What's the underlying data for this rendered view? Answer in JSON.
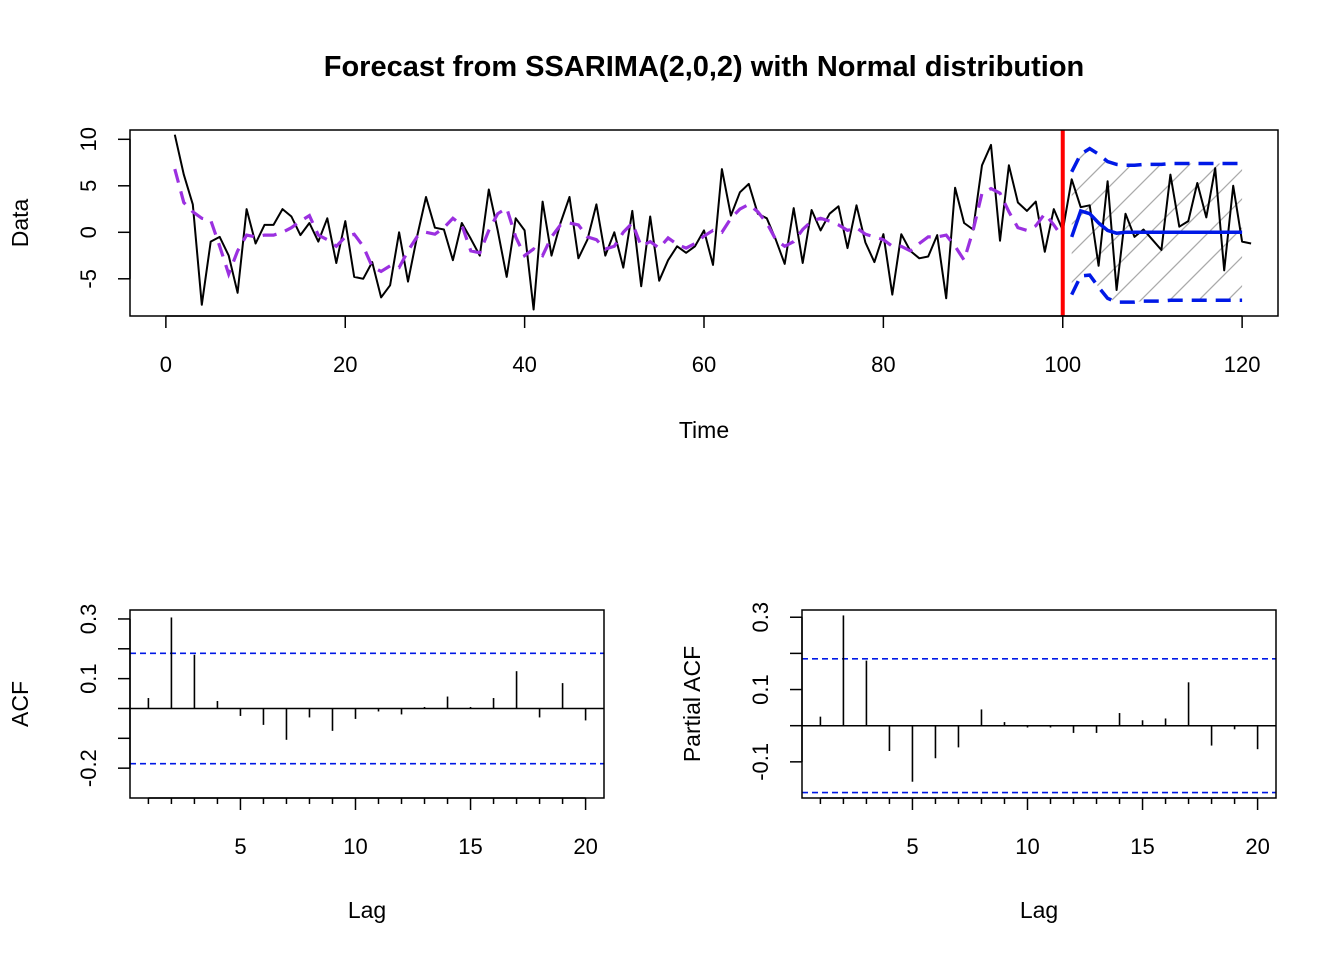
{
  "chart_data": [
    {
      "type": "line",
      "title": "Forecast from SSARIMA(2,0,2) with Normal distribution",
      "xlabel": "Time",
      "ylabel": "Data",
      "xlim": [
        -4,
        124
      ],
      "ylim": [
        -9,
        11
      ],
      "xticks": [
        0,
        20,
        40,
        60,
        80,
        100,
        120
      ],
      "yticks": [
        -5,
        0,
        5,
        10
      ],
      "grid": false,
      "forecast_origin": 100,
      "colors": {
        "actual": "#000000",
        "fitted": "#9b30e0",
        "forecast": "#0019e6",
        "origin": "#ff0000",
        "band_hatch": "#aaaaaa"
      },
      "series": [
        {
          "role": "actual",
          "x_start": 1,
          "values": [
            10.5,
            6.2,
            3.0,
            -7.8,
            -1.0,
            -0.5,
            -2.5,
            -6.5,
            2.5,
            -1.2,
            0.8,
            0.8,
            2.5,
            1.7,
            -0.3,
            1.0,
            -1.0,
            1.5,
            -3.3,
            1.2,
            -4.8,
            -5.0,
            -3.2,
            -7.0,
            -5.7,
            0.0,
            -5.3,
            -0.5,
            3.8,
            0.5,
            0.3,
            -3.0,
            1.0,
            -0.7,
            -2.5,
            4.6,
            0.2,
            -4.8,
            1.5,
            0.2,
            -8.3,
            3.3,
            -2.5,
            1.0,
            3.8,
            -2.8,
            -0.8,
            3.0,
            -2.5,
            0.0,
            -3.8,
            2.3,
            -5.8,
            1.7,
            -5.2,
            -3.0,
            -1.5,
            -2.2,
            -1.5,
            0.2,
            -3.5,
            6.8,
            1.8,
            4.3,
            5.2,
            2.0,
            1.5,
            -0.8,
            -3.4,
            2.6,
            -3.3,
            2.4,
            0.2,
            2.0,
            2.8,
            -1.7,
            2.9,
            -1.1,
            -3.2,
            -0.2,
            -6.7,
            -0.2,
            -2.0,
            -2.8,
            -2.6,
            -0.3,
            -7.1,
            4.8,
            1.0,
            0.3,
            7.2,
            9.4,
            -0.9,
            7.2,
            3.2,
            2.3,
            3.3,
            -2.1,
            2.5,
            0.2,
            5.7,
            2.7,
            2.9,
            -3.6,
            5.5,
            -6.2,
            2.0,
            -0.5,
            0.3,
            -0.8,
            -1.9,
            6.2,
            0.6,
            1.2,
            5.3,
            1.6,
            6.9,
            -4.1,
            5.0,
            -1.0,
            -1.2
          ]
        },
        {
          "role": "fitted",
          "x_start": 1,
          "values": [
            6.8,
            3.2,
            2.2,
            1.5,
            1.3,
            -1.5,
            -4.5,
            -2.0,
            -0.3,
            -0.5,
            -0.3,
            -0.3,
            0.0,
            0.5,
            1.2,
            1.8,
            -0.3,
            -0.8,
            -1.5,
            -0.5,
            -0.2,
            -1.5,
            -3.7,
            -4.2,
            -3.6,
            -3.8,
            -2.0,
            -0.5,
            0.0,
            -0.2,
            0.5,
            1.5,
            0.8,
            -2.0,
            -2.2,
            0.2,
            2.0,
            2.6,
            -0.5,
            -2.5,
            -1.8,
            -2.5,
            -0.5,
            0.8,
            1.0,
            0.8,
            -0.5,
            -0.8,
            -1.8,
            -1.5,
            0.0,
            1.0,
            -1.5,
            -1.0,
            -1.7,
            -0.6,
            -1.3,
            -1.7,
            -1.2,
            -0.4,
            0.2,
            0.0,
            1.5,
            2.5,
            3.0,
            2.2,
            1.0,
            -0.8,
            -1.5,
            -1.0,
            0.3,
            1.2,
            1.5,
            1.2,
            0.8,
            0.2,
            0.5,
            -0.2,
            -0.5,
            -0.8,
            -1.5,
            -1.5,
            -2.0,
            -1.2,
            -0.5,
            -0.5,
            -0.3,
            -1.5,
            -3.0,
            0.2,
            4.2,
            4.7,
            4.2,
            2.2,
            0.5,
            0.2,
            0.7,
            2.0,
            0.8,
            -0.6
          ]
        },
        {
          "role": "forecast",
          "x_start": 101,
          "values": [
            -0.5,
            2.3,
            2.0,
            1.0,
            0.2,
            -0.1,
            0.0,
            0.0,
            0.0,
            0.0,
            0.0,
            0.0,
            0.0,
            0.0,
            0.0,
            0.0,
            0.0,
            0.0,
            0.0,
            0.0
          ]
        },
        {
          "role": "upper",
          "x_start": 101,
          "values": [
            6.5,
            8.4,
            9.0,
            8.4,
            7.6,
            7.3,
            7.2,
            7.2,
            7.3,
            7.3,
            7.3,
            7.4,
            7.4,
            7.4,
            7.4,
            7.4,
            7.4,
            7.4,
            7.4,
            7.4
          ]
        },
        {
          "role": "lower",
          "x_start": 101,
          "values": [
            -6.7,
            -4.7,
            -4.6,
            -5.9,
            -7.1,
            -7.5,
            -7.5,
            -7.5,
            -7.4,
            -7.4,
            -7.4,
            -7.3,
            -7.3,
            -7.3,
            -7.3,
            -7.3,
            -7.3,
            -7.3,
            -7.3,
            -7.3
          ]
        }
      ]
    },
    {
      "type": "bar",
      "title": "",
      "xlabel": "Lag",
      "ylabel": "ACF",
      "xlim": [
        0.2,
        20.8
      ],
      "ylim": [
        -0.3,
        0.33
      ],
      "xticks": [
        5,
        10,
        15,
        20
      ],
      "yticks": [
        -0.2,
        0.1,
        0.3
      ],
      "minor_yticks": [
        0.2,
        0.0,
        -0.1
      ],
      "confidence_bounds": [
        0.185,
        -0.185
      ],
      "colors": {
        "bars": "#000000",
        "bounds": "#0019e6"
      },
      "x": [
        1,
        2,
        3,
        4,
        5,
        6,
        7,
        8,
        9,
        10,
        11,
        12,
        13,
        14,
        15,
        16,
        17,
        18,
        19,
        20
      ],
      "values": [
        0.035,
        0.305,
        0.18,
        0.025,
        -0.025,
        -0.055,
        -0.105,
        -0.03,
        -0.075,
        -0.035,
        -0.01,
        -0.02,
        0.005,
        0.04,
        0.005,
        0.035,
        0.125,
        -0.03,
        0.085,
        -0.04
      ]
    },
    {
      "type": "bar",
      "title": "",
      "xlabel": "Lag",
      "ylabel": "Partial ACF",
      "xlim": [
        0.2,
        20.8
      ],
      "ylim": [
        -0.2,
        0.32
      ],
      "xticks": [
        5,
        10,
        15,
        20
      ],
      "yticks": [
        -0.1,
        0.1,
        0.3
      ],
      "minor_yticks": [
        0.2,
        0.0
      ],
      "confidence_bounds": [
        0.185,
        -0.185
      ],
      "colors": {
        "bars": "#000000",
        "bounds": "#0019e6"
      },
      "x": [
        1,
        2,
        3,
        4,
        5,
        6,
        7,
        8,
        9,
        10,
        11,
        12,
        13,
        14,
        15,
        16,
        17,
        18,
        19,
        20
      ],
      "values": [
        0.025,
        0.305,
        0.18,
        -0.07,
        -0.155,
        -0.09,
        -0.06,
        0.045,
        0.01,
        -0.005,
        -0.005,
        -0.02,
        -0.02,
        0.035,
        0.015,
        0.02,
        0.12,
        -0.055,
        -0.01,
        -0.065
      ]
    }
  ]
}
